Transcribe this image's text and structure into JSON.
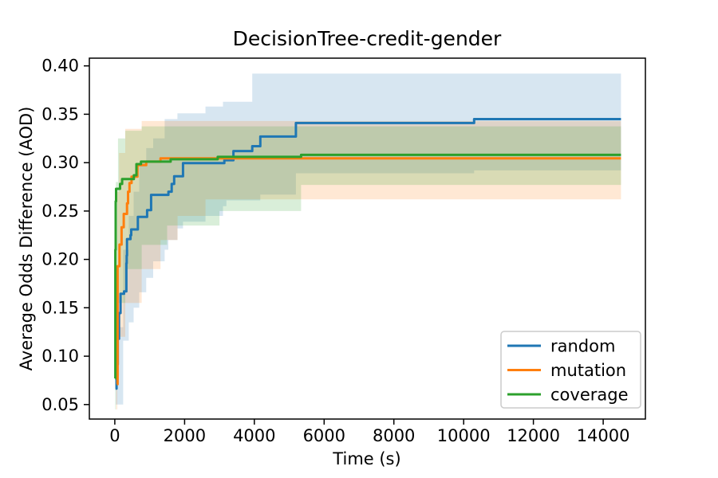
{
  "chart_data": {
    "type": "line",
    "title": "DecisionTree-credit-gender",
    "xlabel": "Time (s)",
    "ylabel": "Average Odds Difference (AOD)",
    "xlim": [
      -730,
      15210
    ],
    "ylim": [
      0.035,
      0.408
    ],
    "xticks": [
      0,
      2000,
      4000,
      6000,
      8000,
      10000,
      12000,
      14000
    ],
    "yticks": [
      0.05,
      0.1,
      0.15,
      0.2,
      0.25,
      0.3,
      0.35,
      0.4
    ],
    "grid": false,
    "step_mode": "post",
    "background_color": "#ffffff",
    "spine_color": "#000000",
    "legend": {
      "position": "lower right",
      "border_color": "#cccccc"
    },
    "series": [
      {
        "name": "random",
        "color": "#1f77b4",
        "x": [
          20,
          50,
          85,
          120,
          165,
          265,
          330,
          340,
          350,
          450,
          470,
          660,
          926,
          1040,
          1536,
          1630,
          1700,
          1954,
          3140,
          3400,
          3940,
          4170,
          5190,
          10300,
          14510
        ],
        "y": [
          0.0665,
          0.0915,
          0.118,
          0.1445,
          0.1645,
          0.167,
          0.196,
          0.204,
          0.221,
          0.225,
          0.231,
          0.244,
          0.251,
          0.2667,
          0.27,
          0.278,
          0.286,
          0.2995,
          0.3025,
          0.312,
          0.317,
          0.327,
          0.341,
          0.345,
          0.345
        ],
        "band": {
          "opacity": 0.18,
          "x": [
            30,
            240,
            400,
            540,
            700,
            900,
            1100,
            1430,
            1535,
            1795,
            1954,
            2600,
            3100,
            3200,
            3940,
            4170,
            5190,
            10300,
            14510
          ],
          "upper": [
            0.13,
            0.21,
            0.245,
            0.27,
            0.3,
            0.315,
            0.325,
            0.345,
            0.345,
            0.351,
            0.351,
            0.358,
            0.363,
            0.363,
            0.392,
            0.392,
            0.392,
            0.392,
            0.392
          ],
          "lower": [
            0.05,
            0.116,
            0.135,
            0.15,
            0.166,
            0.181,
            0.198,
            0.21,
            0.22,
            0.232,
            0.239,
            0.245,
            0.255,
            0.261,
            0.261,
            0.267,
            0.289,
            0.292,
            0.292
          ]
        }
      },
      {
        "name": "mutation",
        "color": "#ff7f0e",
        "x": [
          60,
          80,
          135,
          195,
          255,
          350,
          380,
          420,
          480,
          650,
          900,
          1310,
          14510
        ],
        "y": [
          0.071,
          0.193,
          0.2153,
          0.2332,
          0.247,
          0.258,
          0.27,
          0.279,
          0.2855,
          0.2975,
          0.301,
          0.3045,
          0.3045
        ],
        "band": {
          "opacity": 0.18,
          "x": [
            40,
            70,
            120,
            300,
            770,
            1310,
            1800,
            2600,
            14510
          ],
          "upper": [
            0.18,
            0.27,
            0.31,
            0.335,
            0.343,
            0.343,
            0.343,
            0.343,
            0.343
          ],
          "lower": [
            0.045,
            0.08,
            0.12,
            0.155,
            0.19,
            0.22,
            0.245,
            0.262,
            0.262
          ]
        }
      },
      {
        "name": "coverage",
        "color": "#2ca02c",
        "x": [
          8,
          15,
          25,
          35,
          150,
          210,
          545,
          620,
          750,
          1600,
          2950,
          5340,
          14510
        ],
        "y": [
          0.077,
          0.21,
          0.26,
          0.273,
          0.278,
          0.283,
          0.287,
          0.2985,
          0.301,
          0.3035,
          0.306,
          0.308,
          0.308
        ],
        "band": {
          "opacity": 0.18,
          "x": [
            10,
            30,
            90,
            300,
            770,
            1500,
            3000,
            5340,
            14510
          ],
          "upper": [
            0.12,
            0.28,
            0.325,
            0.333,
            0.3375,
            0.3375,
            0.3375,
            0.3375,
            0.3375
          ],
          "lower": [
            0.045,
            0.09,
            0.155,
            0.19,
            0.215,
            0.235,
            0.25,
            0.277,
            0.277
          ]
        }
      }
    ]
  }
}
